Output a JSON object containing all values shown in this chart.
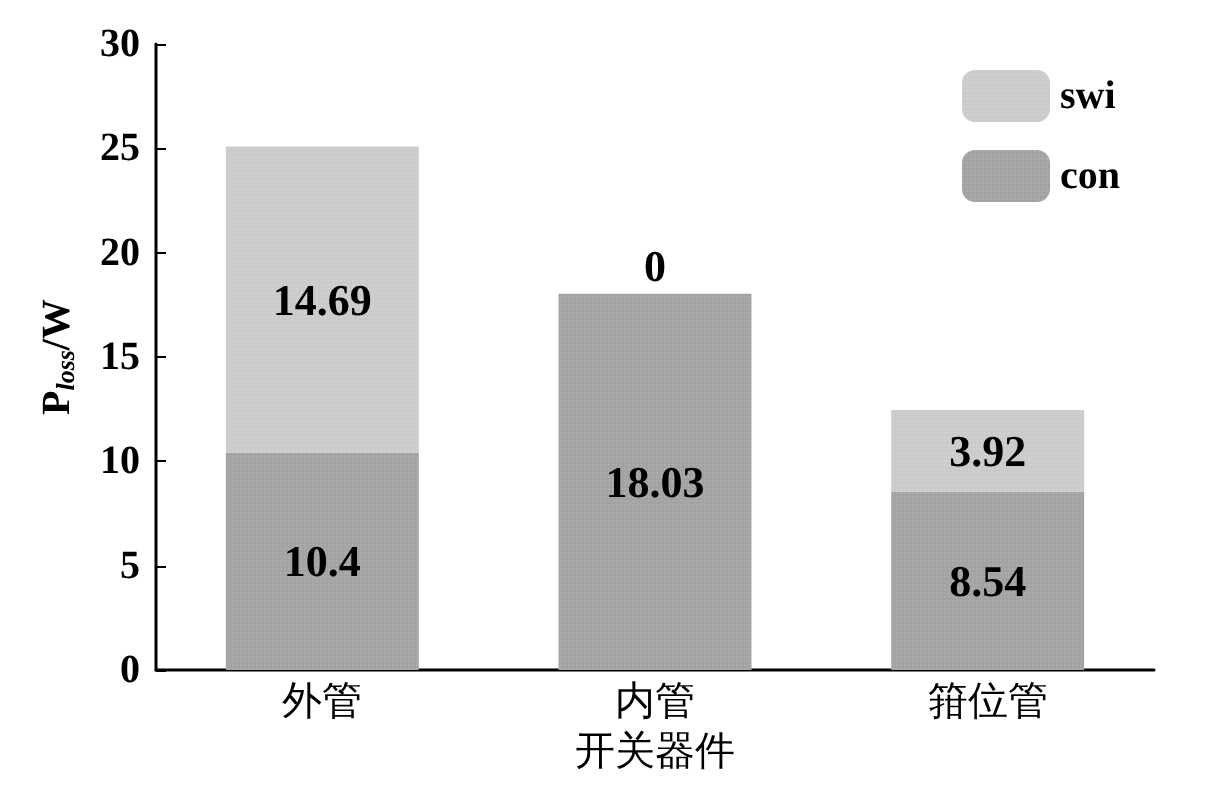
{
  "chart_data": {
    "type": "bar",
    "stacked": true,
    "xlabel": "开关器件",
    "ylabel": "P$_{loss}$/W",
    "categories": [
      "外管",
      "内管",
      "箝位管"
    ],
    "series": [
      {
        "name": "con",
        "color": "#a3a3a3",
        "values": [
          10.4,
          18.03,
          8.54
        ]
      },
      {
        "name": "swi",
        "color": "#cbcbcb",
        "values": [
          14.69,
          0,
          3.92
        ]
      }
    ],
    "ylim": [
      0,
      30
    ],
    "yticks": [
      0,
      5,
      10,
      15,
      20,
      25,
      30
    ],
    "data_labels": true,
    "legend": "top right",
    "grid": false
  }
}
